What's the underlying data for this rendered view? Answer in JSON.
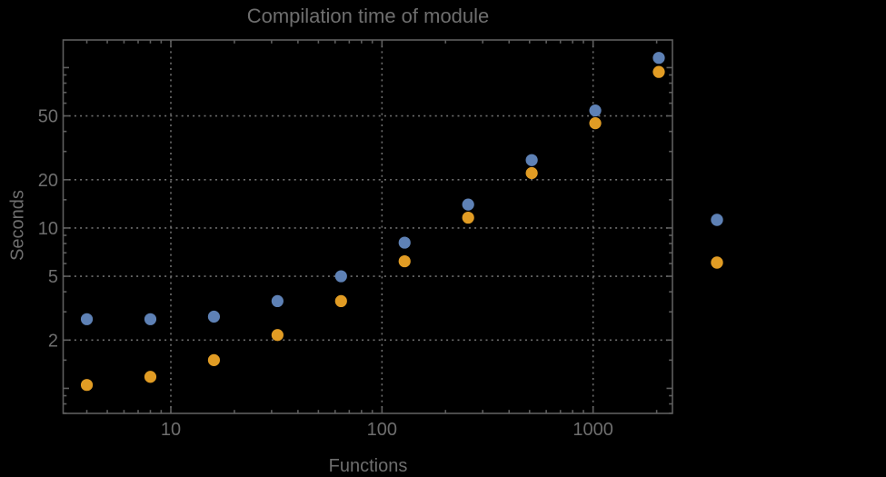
{
  "title": "Compilation time of module",
  "colors": {
    "background": "#000000",
    "frame": "#5e5e5e",
    "grid": "#6f6f6f",
    "text": "#6e6e6e",
    "series_blue": "#5E81B5",
    "series_orange": "#E19C24"
  },
  "chart_data": {
    "type": "scatter",
    "title": "Compilation time of module",
    "xlabel": "Functions",
    "ylabel": "Seconds",
    "x_scale": "log",
    "y_scale": "log",
    "grid": "dotted",
    "legend_position": "right-outside",
    "x_range": [
      3.09,
      2376
    ],
    "y_range": [
      0.698,
      148.7
    ],
    "x_ticks": [
      10,
      100,
      1000
    ],
    "y_ticks": [
      2,
      5,
      10,
      20,
      50
    ],
    "x_minor_ticks": [
      4,
      5,
      6,
      7,
      8,
      9,
      20,
      30,
      40,
      50,
      60,
      70,
      80,
      90,
      200,
      300,
      400,
      500,
      600,
      700,
      800,
      900,
      2000
    ],
    "y_minor_ticks": [
      0.7,
      0.8,
      0.9,
      1.5,
      3,
      4,
      6,
      7,
      8,
      9,
      15,
      30,
      40,
      60,
      70,
      80,
      90
    ],
    "y_unlabeled_major_ticks": [
      1,
      100
    ],
    "x": [
      4,
      8,
      16,
      32,
      64,
      128,
      256,
      512,
      1024,
      2048
    ],
    "series": [
      {
        "name": "series-1-blue",
        "color": "#5E81B5",
        "values": [
          2.7,
          2.7,
          2.8,
          3.5,
          5.0,
          8.1,
          14,
          26.5,
          54,
          115
        ]
      },
      {
        "name": "series-2-orange",
        "color": "#E19C24",
        "values": [
          1.05,
          1.18,
          1.5,
          2.15,
          3.5,
          6.2,
          11.6,
          22,
          45,
          94
        ]
      }
    ]
  },
  "legend": {
    "items": [
      {
        "name": "legend-marker-blue",
        "color": "#5E81B5",
        "label": ""
      },
      {
        "name": "legend-marker-orange",
        "color": "#E19C24",
        "label": ""
      }
    ]
  }
}
